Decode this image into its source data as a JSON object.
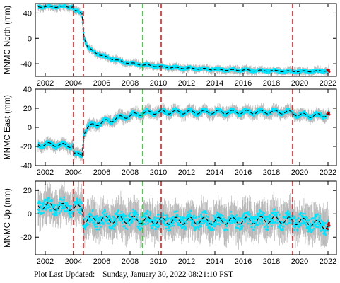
{
  "footer": {
    "label": "Plot Last Updated:",
    "timestamp": "Sunday, January 30, 2022 08:21:10 PST"
  },
  "colors": {
    "data": "#00e5ff",
    "errorbars": "#b4b4b4",
    "model": "#000000",
    "event_red": "#dd2020",
    "event_green": "#22bb22",
    "recent": "#cc0000"
  },
  "chart_data": [
    {
      "type": "line",
      "ylabel": "MNMC North (mm)",
      "xlim": [
        2001.3,
        2022.6
      ],
      "ylim": [
        -60,
        55
      ],
      "yticks": [
        -40,
        0,
        40
      ],
      "xticks": [
        2002,
        2004,
        2006,
        2008,
        2010,
        2012,
        2014,
        2016,
        2018,
        2020,
        2022
      ],
      "red_events": [
        2004.0,
        2004.7,
        2010.2,
        2019.5
      ],
      "green_events": [
        2008.9
      ],
      "series": [
        {
          "x": [
            2001.5,
            2002.5,
            2003.5,
            2003.95,
            2004.05,
            2004.6,
            2004.75,
            2005.0,
            2005.5,
            2006.0,
            2006.5,
            2007.0,
            2007.5,
            2008.0,
            2009.0,
            2010.0,
            2011.0,
            2012.0,
            2013.0,
            2014.0,
            2015.0,
            2016.0,
            2017.0,
            2018.0,
            2019.0,
            2019.5,
            2020.0,
            2021.0,
            2021.8,
            2022.1
          ],
          "y": [
            50,
            50,
            50,
            50,
            44,
            40,
            2,
            -14,
            -22,
            -27,
            -31,
            -34,
            -37,
            -39,
            -42,
            -44,
            -46,
            -47,
            -48,
            -49,
            -50,
            -50,
            -51,
            -51,
            -52,
            -52,
            -52,
            -52,
            -51,
            -51
          ],
          "band": 4,
          "amplitude": 1
        }
      ]
    },
    {
      "type": "line",
      "ylabel": "MNMC East (mm)",
      "xlim": [
        2001.3,
        2022.6
      ],
      "ylim": [
        -40,
        40
      ],
      "yticks": [
        -40,
        -20,
        0,
        20,
        40
      ],
      "xticks": [
        2002,
        2004,
        2006,
        2008,
        2010,
        2012,
        2014,
        2016,
        2018,
        2020,
        2022
      ],
      "red_events": [
        2004.0,
        2004.7,
        2010.2,
        2019.5
      ],
      "green_events": [
        2008.9
      ],
      "series": [
        {
          "x": [
            2001.5,
            2002.5,
            2003.5,
            2003.95,
            2004.05,
            2004.6,
            2004.75,
            2005.0,
            2005.5,
            2006.0,
            2006.5,
            2007.0,
            2007.5,
            2008.0,
            2008.5,
            2009.0,
            2010.0,
            2011.0,
            2012.0,
            2013.0,
            2014.0,
            2015.0,
            2016.0,
            2017.0,
            2018.0,
            2019.0,
            2019.5,
            2020.0,
            2021.0,
            2021.8,
            2022.1
          ],
          "y": [
            -18,
            -18,
            -19,
            -19,
            -28,
            -29,
            -5,
            0,
            3,
            5,
            7,
            9,
            11,
            12,
            14,
            15,
            16,
            16,
            16,
            16,
            16,
            16,
            16,
            16,
            16,
            16,
            15,
            13,
            12,
            13,
            14
          ],
          "band": 4,
          "amplitude": 2
        }
      ]
    },
    {
      "type": "line",
      "ylabel": "MNMC Up (mm)",
      "xlim": [
        2001.3,
        2022.6
      ],
      "ylim": [
        -35,
        28
      ],
      "yticks": [
        -20,
        0,
        20
      ],
      "xticks": [
        2002,
        2004,
        2006,
        2008,
        2010,
        2012,
        2014,
        2016,
        2018,
        2020,
        2022
      ],
      "red_events": [
        2004.0,
        2004.7,
        2010.2,
        2019.5
      ],
      "green_events": [
        2008.9
      ],
      "series": [
        {
          "x": [
            2001.5,
            2003.0,
            2003.95,
            2004.05,
            2004.6,
            2004.75,
            2006.0,
            2008.0,
            2010.0,
            2012.0,
            2014.0,
            2016.0,
            2018.0,
            2019.5,
            2020.5,
            2021.5,
            2022.1
          ],
          "y": [
            7,
            6,
            6,
            4,
            6,
            -5,
            -5,
            -5,
            -6,
            -6,
            -6,
            -6,
            -5,
            -6,
            -7,
            -9,
            -11
          ],
          "band": 10,
          "amplitude": 3
        }
      ]
    }
  ]
}
